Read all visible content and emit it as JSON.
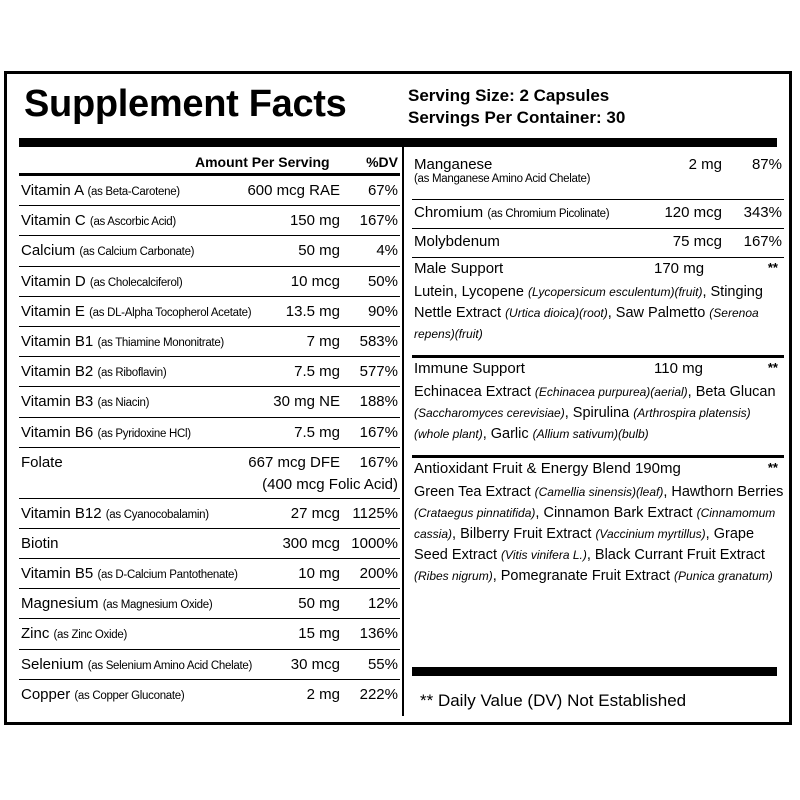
{
  "header": {
    "title": "Supplement Facts",
    "serving_size": "Serving Size: 2 Capsules",
    "servings_per_container": "Servings Per Container: 30"
  },
  "left_table": {
    "amount_header": "Amount Per Serving",
    "dv_header": "%DV",
    "rows": [
      {
        "name": "Vitamin A",
        "source": "(as Beta-Carotene)",
        "amount": "600 mcg RAE",
        "dv": "67%"
      },
      {
        "name": "Vitamin C",
        "source": "(as Ascorbic Acid)",
        "amount": "150 mg",
        "dv": "167%"
      },
      {
        "name": "Calcium",
        "source": "(as Calcium Carbonate)",
        "amount": "50 mg",
        "dv": "4%"
      },
      {
        "name": "Vitamin D",
        "source": "(as Cholecalciferol)",
        "amount": "10 mcg",
        "dv": "50%"
      },
      {
        "name": "Vitamin E",
        "source": "(as DL-Alpha Tocopherol Acetate)",
        "amount": "13.5 mg",
        "dv": "90%"
      },
      {
        "name": "Vitamin B1",
        "source": "(as Thiamine Mononitrate)",
        "amount": "7 mg",
        "dv": "583%"
      },
      {
        "name": "Vitamin B2",
        "source": "(as Riboflavin)",
        "amount": "7.5 mg",
        "dv": "577%"
      },
      {
        "name": "Vitamin B3",
        "source": "(as Niacin)",
        "amount": "30 mg NE",
        "dv": "188%"
      },
      {
        "name": "Vitamin B6",
        "source": "(as Pyridoxine HCl)",
        "amount": "7.5 mg",
        "dv": "167%"
      },
      {
        "name": "Folate",
        "source": "",
        "amount": "667 mcg DFE",
        "dv": "167%",
        "sub": "(400 mcg Folic Acid)"
      },
      {
        "name": "Vitamin B12",
        "source": "(as Cyanocobalamin)",
        "amount": "27 mcg",
        "dv": "1125%"
      },
      {
        "name": "Biotin",
        "source": "",
        "amount": "300 mcg",
        "dv": "1000%"
      },
      {
        "name": "Vitamin B5",
        "source": "(as D-Calcium Pantothenate)",
        "amount": "10 mg",
        "dv": "200%"
      },
      {
        "name": "Magnesium",
        "source": "(as Magnesium Oxide)",
        "amount": "50 mg",
        "dv": "12%"
      },
      {
        "name": "Zinc",
        "source": "(as Zinc Oxide)",
        "amount": "15 mg",
        "dv": "136%"
      },
      {
        "name": "Selenium",
        "source": "(as Selenium Amino Acid Chelate)",
        "amount": "30 mcg",
        "dv": "55%"
      },
      {
        "name": "Copper",
        "source": "(as Copper Gluconate)",
        "amount": "2 mg",
        "dv": "222%"
      }
    ]
  },
  "right_table": {
    "manganese": {
      "name": "Manganese",
      "source": "(as Manganese Amino Acid Chelate)",
      "amount": "2 mg",
      "dv": "87%"
    },
    "chromium": {
      "name": "Chromium",
      "source": "(as Chromium Picolinate)",
      "amount": "120 mcg",
      "dv": "343%"
    },
    "molybdenum": {
      "name": "Molybdenum",
      "source": "",
      "amount": "75 mcg",
      "dv": "167%"
    },
    "male_support": {
      "name": "Male Support",
      "amount": "170 mg",
      "dv": "**",
      "ingredients": [
        {
          "n": "Lutein, Lycopene ",
          "i": "(Lycopersicum esculentum)(fruit)",
          "s": ","
        },
        {
          "n": " Stinging Nettle Extract ",
          "i": "(Urtica dioica)(root)",
          "s": ","
        },
        {
          "n": " Saw Palmetto ",
          "i": "(Serenoa repens)(fruit)",
          "s": ""
        }
      ]
    },
    "immune_support": {
      "name": "Immune Support",
      "amount": "110 mg",
      "dv": "**",
      "ingredients": [
        {
          "n": "Echinacea Extract ",
          "i": "(Echinacea purpurea)(aerial)",
          "s": ","
        },
        {
          "n": " Beta Glucan ",
          "i": "(Saccharomyces cerevisiae)",
          "s": ","
        },
        {
          "n": " Spirulina ",
          "i": "(Arthrospira platensis)(whole plant)",
          "s": ","
        },
        {
          "n": " Garlic ",
          "i": "(Allium sativum)(bulb)",
          "s": ""
        }
      ]
    },
    "antioxidant_blend": {
      "name": "Antioxidant Fruit & Energy Blend",
      "amount": "190mg",
      "dv": "**",
      "ingredients": [
        {
          "n": "Green Tea Extract ",
          "i": "(Camellia sinensis)(leaf)",
          "s": ","
        },
        {
          "n": " Hawthorn Berries ",
          "i": "(Crataegus pinnatifida)",
          "s": ","
        },
        {
          "n": " Cinnamon Bark Extract ",
          "i": "(Cinnamomum cassia)",
          "s": ","
        },
        {
          "n": " Bilberry Fruit Extract ",
          "i": "(Vaccinium myrtillus)",
          "s": ","
        },
        {
          "n": " Grape Seed Extract ",
          "i": "(Vitis vinifera L.)",
          "s": ","
        },
        {
          "n": " Black Currant Fruit Extract ",
          "i": "(Ribes nigrum)",
          "s": ","
        },
        {
          "n": " Pomegranate Fruit Extract ",
          "i": "(Punica granatum)",
          "s": ""
        }
      ]
    },
    "footnote": "** Daily Value (DV) Not Established"
  }
}
